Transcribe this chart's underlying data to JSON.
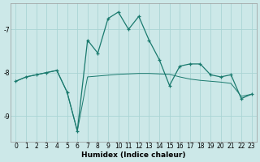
{
  "xlabel": "Humidex (Indice chaleur)",
  "x_values": [
    0,
    1,
    2,
    3,
    4,
    5,
    6,
    7,
    8,
    9,
    10,
    11,
    12,
    13,
    14,
    15,
    16,
    17,
    18,
    19,
    20,
    21,
    22,
    23
  ],
  "y_line1": [
    -8.2,
    -8.1,
    -8.05,
    -8.0,
    -7.95,
    -8.45,
    -9.35,
    -7.25,
    -7.55,
    -6.75,
    -6.6,
    -7.0,
    -6.7,
    -7.25,
    -7.7,
    -8.3,
    -7.85,
    -7.8,
    -7.8,
    -8.05,
    -8.1,
    -8.05,
    -8.6,
    -8.5
  ],
  "y_line2": [
    -8.2,
    -8.1,
    -8.05,
    -8.0,
    -7.95,
    -8.45,
    -9.35,
    -8.1,
    -8.08,
    -8.06,
    -8.04,
    -8.03,
    -8.02,
    -8.02,
    -8.03,
    -8.04,
    -8.1,
    -8.15,
    -8.18,
    -8.2,
    -8.22,
    -8.25,
    -8.55,
    -8.5
  ],
  "line_color": "#1a7a6e",
  "bg_color": "#cce8e8",
  "grid_major_color": "#aad4d4",
  "grid_minor_color": "#bde0e0",
  "ylim": [
    -9.6,
    -6.4
  ],
  "yticks": [
    -9,
    -8,
    -7
  ],
  "xlim": [
    -0.5,
    23.5
  ]
}
